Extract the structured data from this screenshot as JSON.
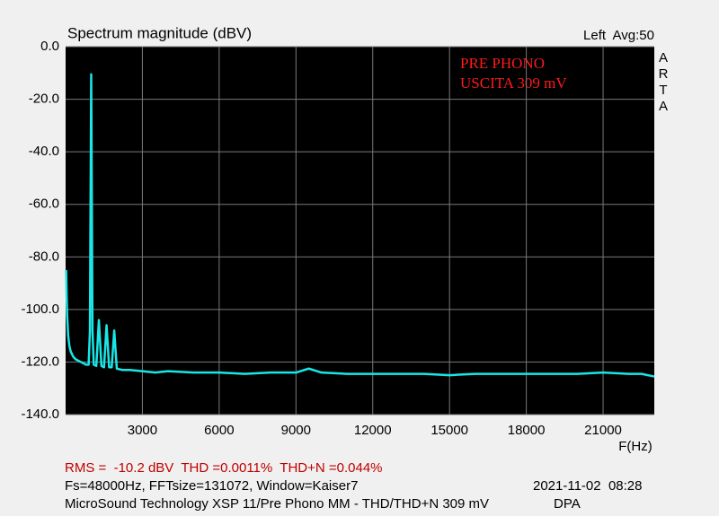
{
  "chart_data": {
    "type": "line",
    "title": "Spectrum magnitude (dBV)",
    "top_right_label": "Left  Avg:50",
    "watermark": "ARTA",
    "annotations": [
      "PRE PHONO",
      "USCITA 309 mV"
    ],
    "x_label": "F(Hz)",
    "grid": true,
    "xlim": [
      0,
      23000
    ],
    "xticks": [
      3000,
      6000,
      9000,
      12000,
      15000,
      18000,
      21000
    ],
    "ylim": [
      -140,
      0
    ],
    "yticks": [
      {
        "value": 0,
        "label": "0.0"
      },
      {
        "value": -20,
        "label": "-20.0"
      },
      {
        "value": -40,
        "label": "-40.0"
      },
      {
        "value": -60,
        "label": "-60.0"
      },
      {
        "value": -80,
        "label": "-80.0"
      },
      {
        "value": -100,
        "label": "-100.0"
      },
      {
        "value": -120,
        "label": "-120.0"
      },
      {
        "value": -140,
        "label": "-140.0"
      }
    ],
    "x": [
      20,
      40,
      60,
      100,
      150,
      200,
      300,
      400,
      500,
      600,
      700,
      800,
      900,
      950,
      1000,
      1050,
      1100,
      1200,
      1300,
      1400,
      1500,
      1600,
      1700,
      1800,
      1900,
      2000,
      2200,
      2500,
      3000,
      3500,
      4000,
      5000,
      6000,
      7000,
      8000,
      9000,
      9500,
      10000,
      11000,
      12000,
      13000,
      14000,
      15000,
      16000,
      17000,
      18000,
      19000,
      20000,
      21000,
      22000,
      22500,
      23000
    ],
    "series": [
      {
        "color": "#19e6e6",
        "values": [
          -85,
          -95,
          -102,
          -110,
          -114,
          -116,
          -118,
          -119,
          -119.5,
          -120,
          -120.5,
          -121,
          -121,
          -108,
          -10.5,
          -108,
          -121,
          -121.5,
          -104,
          -121.5,
          -122,
          -106,
          -122,
          -122,
          -108,
          -122.5,
          -123,
          -123,
          -123.5,
          -124,
          -123.5,
          -124,
          -124,
          -124.5,
          -124,
          -124,
          -122.5,
          -124,
          -124.5,
          -124.5,
          -124.5,
          -124.5,
          -125,
          -124.5,
          -124.5,
          -124.5,
          -124.5,
          -124.5,
          -124,
          -124.5,
          -124.5,
          -125.5
        ]
      }
    ],
    "footer": {
      "measurements": "RMS =  -10.2 dBV  THD =0.0011%  THD+N =0.044%",
      "settings": "Fs=48000Hz, FFTsize=131072, Window=Kaiser7",
      "timestamp": "2021-11-02  08:28",
      "device": "MicroSound Technology XSP 11/Pre Phono MM - THD/THD+N 309 mV",
      "mode": "DPA"
    }
  }
}
